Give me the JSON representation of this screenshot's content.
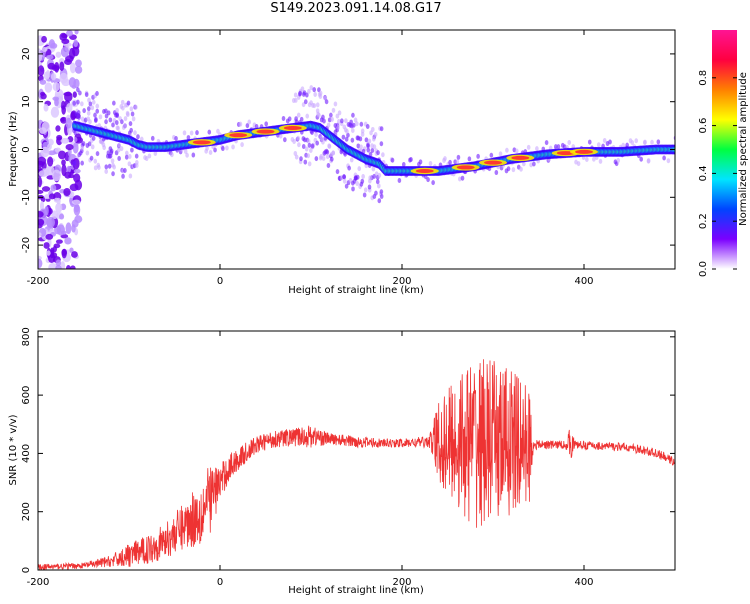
{
  "figure": {
    "title": "S149.2023.091.14.08.G17"
  },
  "chart_data": [
    {
      "type": "heatmap",
      "title": "S149.2023.091.14.08.G17",
      "xlabel": "Height of straight line (km)",
      "ylabel": "Frequency (Hz)",
      "xlim": [
        -200,
        500
      ],
      "ylim": [
        -25,
        25
      ],
      "x_ticks": [
        -200,
        0,
        200,
        400
      ],
      "y_ticks": [
        -20,
        -10,
        0,
        10,
        20
      ],
      "colorbar": {
        "label": "Normalized spectral amplitude",
        "range": [
          0,
          1
        ],
        "ticks": [
          "0.0",
          "0.2",
          "0.4",
          "0.6",
          "0.8"
        ],
        "colormap": [
          "#ffffff",
          "#7b00ff",
          "#0044ff",
          "#00e5ff",
          "#00ff40",
          "#ffff00",
          "#ff8000",
          "#ff0040",
          "#ff1493"
        ]
      },
      "ridge": {
        "x": [
          -160,
          -140,
          -120,
          -100,
          -90,
          -80,
          -60,
          -40,
          -20,
          0,
          20,
          40,
          60,
          80,
          100,
          110,
          120,
          140,
          160,
          175,
          182,
          200,
          240,
          280,
          320,
          360,
          400,
          440,
          480,
          500
        ],
        "y": [
          5,
          4,
          3,
          2,
          1,
          0.5,
          0.5,
          1,
          1.5,
          2,
          3,
          3.5,
          4,
          4.5,
          5,
          4.5,
          3,
          0,
          -2,
          -3,
          -4.5,
          -4.5,
          -4.5,
          -3.5,
          -2,
          -1,
          -0.5,
          -0.5,
          0,
          0
        ]
      },
      "hot_spots_x": [
        -20,
        20,
        50,
        80,
        225,
        270,
        300,
        330,
        380,
        400
      ],
      "noise_region_x": [
        -200,
        -155
      ]
    },
    {
      "type": "line",
      "xlabel": "Height of straight line (km)",
      "ylabel": "SNR (10 * v/v)",
      "xlim": [
        -200,
        500
      ],
      "ylim": [
        0,
        820
      ],
      "x_ticks": [
        -200,
        0,
        200,
        400
      ],
      "y_ticks": [
        0,
        200,
        400,
        600,
        800
      ],
      "color": "#ee3333",
      "series": [
        {
          "x": [
            -200,
            -150,
            -120,
            -100,
            -80,
            -60,
            -40,
            -20,
            -10,
            0,
            10,
            20,
            40,
            60,
            80,
            100,
            120,
            150,
            180,
            200,
            230,
            240,
            260,
            280,
            300,
            320,
            340,
            345,
            350,
            380,
            385,
            390,
            420,
            450,
            480,
            500
          ],
          "y": [
            10,
            15,
            30,
            50,
            70,
            100,
            150,
            200,
            250,
            300,
            350,
            380,
            430,
            450,
            455,
            460,
            450,
            440,
            435,
            435,
            440,
            440,
            440,
            440,
            440,
            440,
            430,
            430,
            430,
            430,
            435,
            430,
            425,
            420,
            400,
            370
          ],
          "spread": [
            10,
            10,
            20,
            40,
            50,
            60,
            80,
            120,
            120,
            60,
            50,
            40,
            30,
            30,
            30,
            40,
            20,
            20,
            15,
            15,
            20,
            150,
            230,
            300,
            280,
            260,
            200,
            20,
            15,
            15,
            60,
            15,
            15,
            15,
            15,
            15
          ]
        }
      ]
    }
  ]
}
